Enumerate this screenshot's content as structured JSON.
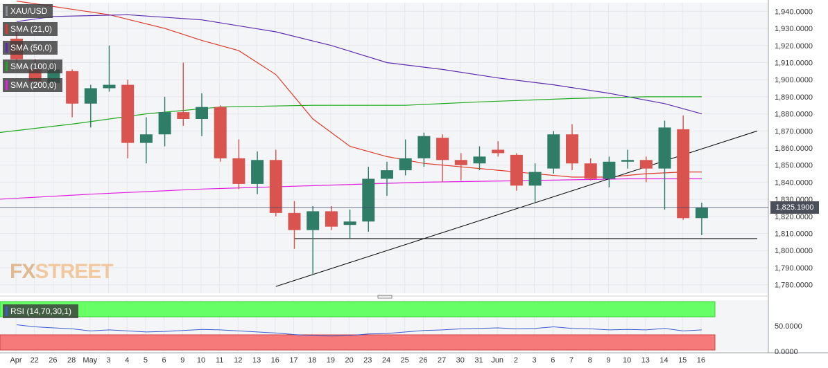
{
  "chart_data": {
    "type": "candlestick",
    "symbol": "XAU/USD",
    "y_range": [
      1775,
      1945
    ],
    "y_ticks": [
      1940,
      1930,
      1920,
      1910,
      1900,
      1890,
      1880,
      1870,
      1860,
      1850,
      1840,
      1830,
      1820,
      1810,
      1800,
      1790,
      1780
    ],
    "y_tick_labels": [
      "1,940.0000",
      "1,930.0000",
      "1,920.0000",
      "1,910.0000",
      "1,900.0000",
      "1,890.0000",
      "1,880.0000",
      "1,870.0000",
      "1,860.0000",
      "1,850.0000",
      "1,840.0000",
      "1,830.0000",
      "1,820.0000",
      "1,810.0000",
      "1,800.0000",
      "1,790.0000",
      "1,780.0000"
    ],
    "x_labels": [
      "Apr",
      "22",
      "26",
      "28",
      "May",
      "3",
      "4",
      "5",
      "6",
      "9",
      "10",
      "11",
      "12",
      "13",
      "16",
      "17",
      "18",
      "19",
      "20",
      "23",
      "24",
      "25",
      "26",
      "27",
      "30",
      "31",
      "Jun",
      "2",
      "3",
      "6",
      "7",
      "8",
      "9",
      "10",
      "13",
      "14",
      "15",
      "16"
    ],
    "current_price": 1825.19,
    "current_price_label": "1,825.1900",
    "candles": [
      {
        "o": 1924,
        "h": 1930,
        "l": 1910,
        "c": 1912
      },
      {
        "o": 1906,
        "h": 1912,
        "l": 1898,
        "c": 1899
      },
      {
        "o": 1898,
        "h": 1911,
        "l": 1895,
        "c": 1906
      },
      {
        "o": 1905,
        "h": 1906,
        "l": 1878,
        "c": 1886
      },
      {
        "o": 1886,
        "h": 1897,
        "l": 1872,
        "c": 1895
      },
      {
        "o": 1895,
        "h": 1920,
        "l": 1893,
        "c": 1897
      },
      {
        "o": 1897,
        "h": 1900,
        "l": 1854,
        "c": 1863
      },
      {
        "o": 1863,
        "h": 1878,
        "l": 1851,
        "c": 1868
      },
      {
        "o": 1868,
        "h": 1890,
        "l": 1861,
        "c": 1881
      },
      {
        "o": 1881,
        "h": 1910,
        "l": 1873,
        "c": 1877
      },
      {
        "o": 1877,
        "h": 1892,
        "l": 1867,
        "c": 1884
      },
      {
        "o": 1884,
        "h": 1885,
        "l": 1852,
        "c": 1854
      },
      {
        "o": 1854,
        "h": 1865,
        "l": 1836,
        "c": 1839
      },
      {
        "o": 1839,
        "h": 1858,
        "l": 1833,
        "c": 1853
      },
      {
        "o": 1853,
        "h": 1859,
        "l": 1820,
        "c": 1822
      },
      {
        "o": 1822,
        "h": 1829,
        "l": 1801,
        "c": 1812
      },
      {
        "o": 1812,
        "h": 1826,
        "l": 1786,
        "c": 1823
      },
      {
        "o": 1823,
        "h": 1826,
        "l": 1812,
        "c": 1814
      },
      {
        "o": 1815,
        "h": 1824,
        "l": 1807,
        "c": 1817
      },
      {
        "o": 1817,
        "h": 1849,
        "l": 1811,
        "c": 1842
      },
      {
        "o": 1842,
        "h": 1852,
        "l": 1832,
        "c": 1847
      },
      {
        "o": 1847,
        "h": 1865,
        "l": 1844,
        "c": 1854
      },
      {
        "o": 1854,
        "h": 1869,
        "l": 1849,
        "c": 1867
      },
      {
        "o": 1866,
        "h": 1868,
        "l": 1840,
        "c": 1853
      },
      {
        "o": 1853,
        "h": 1857,
        "l": 1841,
        "c": 1850
      },
      {
        "o": 1851,
        "h": 1861,
        "l": 1847,
        "c": 1855
      },
      {
        "o": 1859,
        "h": 1864,
        "l": 1855,
        "c": 1857
      },
      {
        "o": 1856,
        "h": 1857,
        "l": 1835,
        "c": 1838
      },
      {
        "o": 1838,
        "h": 1851,
        "l": 1828,
        "c": 1846
      },
      {
        "o": 1848,
        "h": 1870,
        "l": 1845,
        "c": 1868
      },
      {
        "o": 1868,
        "h": 1874,
        "l": 1847,
        "c": 1851
      },
      {
        "o": 1851,
        "h": 1854,
        "l": 1841,
        "c": 1842
      },
      {
        "o": 1842,
        "h": 1855,
        "l": 1837,
        "c": 1852
      },
      {
        "o": 1852,
        "h": 1859,
        "l": 1848,
        "c": 1853
      },
      {
        "o": 1853,
        "h": 1855,
        "l": 1840,
        "c": 1848
      },
      {
        "o": 1848,
        "h": 1876,
        "l": 1824,
        "c": 1872
      },
      {
        "o": 1871,
        "h": 1879,
        "l": 1818,
        "c": 1819
      },
      {
        "o": 1819,
        "h": 1828,
        "l": 1809,
        "c": 1825
      }
    ],
    "sma": [
      {
        "name": "SMA (21,0)",
        "color": "#e03a2b",
        "points": [
          [
            0,
            1946
          ],
          [
            5,
            1938
          ],
          [
            8,
            1930
          ],
          [
            10,
            1923
          ],
          [
            12,
            1917
          ],
          [
            14,
            1903
          ],
          [
            16,
            1877
          ],
          [
            18,
            1861
          ],
          [
            20,
            1855
          ],
          [
            22,
            1851
          ],
          [
            24,
            1849
          ],
          [
            26,
            1847
          ],
          [
            28,
            1845
          ],
          [
            30,
            1843
          ],
          [
            32,
            1843
          ],
          [
            34,
            1845
          ],
          [
            36,
            1846
          ],
          [
            37,
            1846
          ]
        ]
      },
      {
        "name": "SMA (50,0)",
        "color": "#5b2cb0",
        "points": [
          [
            0,
            1934
          ],
          [
            2,
            1937
          ],
          [
            6,
            1938
          ],
          [
            10,
            1935
          ],
          [
            14,
            1928
          ],
          [
            17,
            1920
          ],
          [
            20,
            1910
          ],
          [
            23,
            1906
          ],
          [
            26,
            1901
          ],
          [
            29,
            1897
          ],
          [
            32,
            1892
          ],
          [
            35,
            1886
          ],
          [
            37,
            1880
          ]
        ]
      },
      {
        "name": "SMA (100,0)",
        "color": "#1faa1f",
        "points": [
          [
            -1,
            1869
          ],
          [
            3,
            1874
          ],
          [
            7,
            1880
          ],
          [
            11,
            1884
          ],
          [
            16,
            1885
          ],
          [
            21,
            1885
          ],
          [
            25,
            1887
          ],
          [
            30,
            1889
          ],
          [
            34,
            1890
          ],
          [
            37,
            1890
          ]
        ]
      },
      {
        "name": "SMA (200,0)",
        "color": "#e020e0",
        "points": [
          [
            -1,
            1830
          ],
          [
            4,
            1833
          ],
          [
            10,
            1836
          ],
          [
            16,
            1838
          ],
          [
            22,
            1840
          ],
          [
            28,
            1841
          ],
          [
            33,
            1842
          ],
          [
            37,
            1842
          ]
        ]
      }
    ],
    "trendlines": [
      {
        "type": "rising",
        "from": [
          14,
          1779
        ],
        "to": [
          40,
          1870
        ]
      },
      {
        "type": "horizontal",
        "from": [
          15,
          1807
        ],
        "to": [
          40,
          1807
        ]
      }
    ],
    "rsi": {
      "label": "RSI (14,70,30,1)",
      "y_range": [
        0,
        100
      ],
      "y_tick_labels": [
        "50.0000",
        "0.0000"
      ],
      "values": [
        52,
        48,
        46,
        44,
        40,
        42,
        40,
        38,
        39,
        41,
        43,
        42,
        40,
        38,
        36,
        33,
        31,
        30,
        31,
        34,
        35,
        38,
        41,
        42,
        44,
        45,
        46,
        44,
        45,
        48,
        45,
        44,
        42,
        43,
        42,
        45,
        40,
        42
      ]
    },
    "y_tick_values_rsi": [
      50,
      0
    ]
  },
  "legend": [
    {
      "label": "XAU/USD",
      "color": "#4a4f5a"
    },
    {
      "label": "SMA (21,0)",
      "color": "#e03a2b"
    },
    {
      "label": "SMA (50,0)",
      "color": "#5b2cb0"
    },
    {
      "label": "SMA (100,0)",
      "color": "#1faa1f"
    },
    {
      "label": "SMA (200,0)",
      "color": "#e020e0"
    }
  ],
  "watermark": {
    "fx": "FX",
    "street": "STREET"
  },
  "colors": {
    "up": "#2f7d67",
    "down": "#d9534f",
    "grid": "#e6e8ec",
    "bg": "#f4f5f7"
  }
}
